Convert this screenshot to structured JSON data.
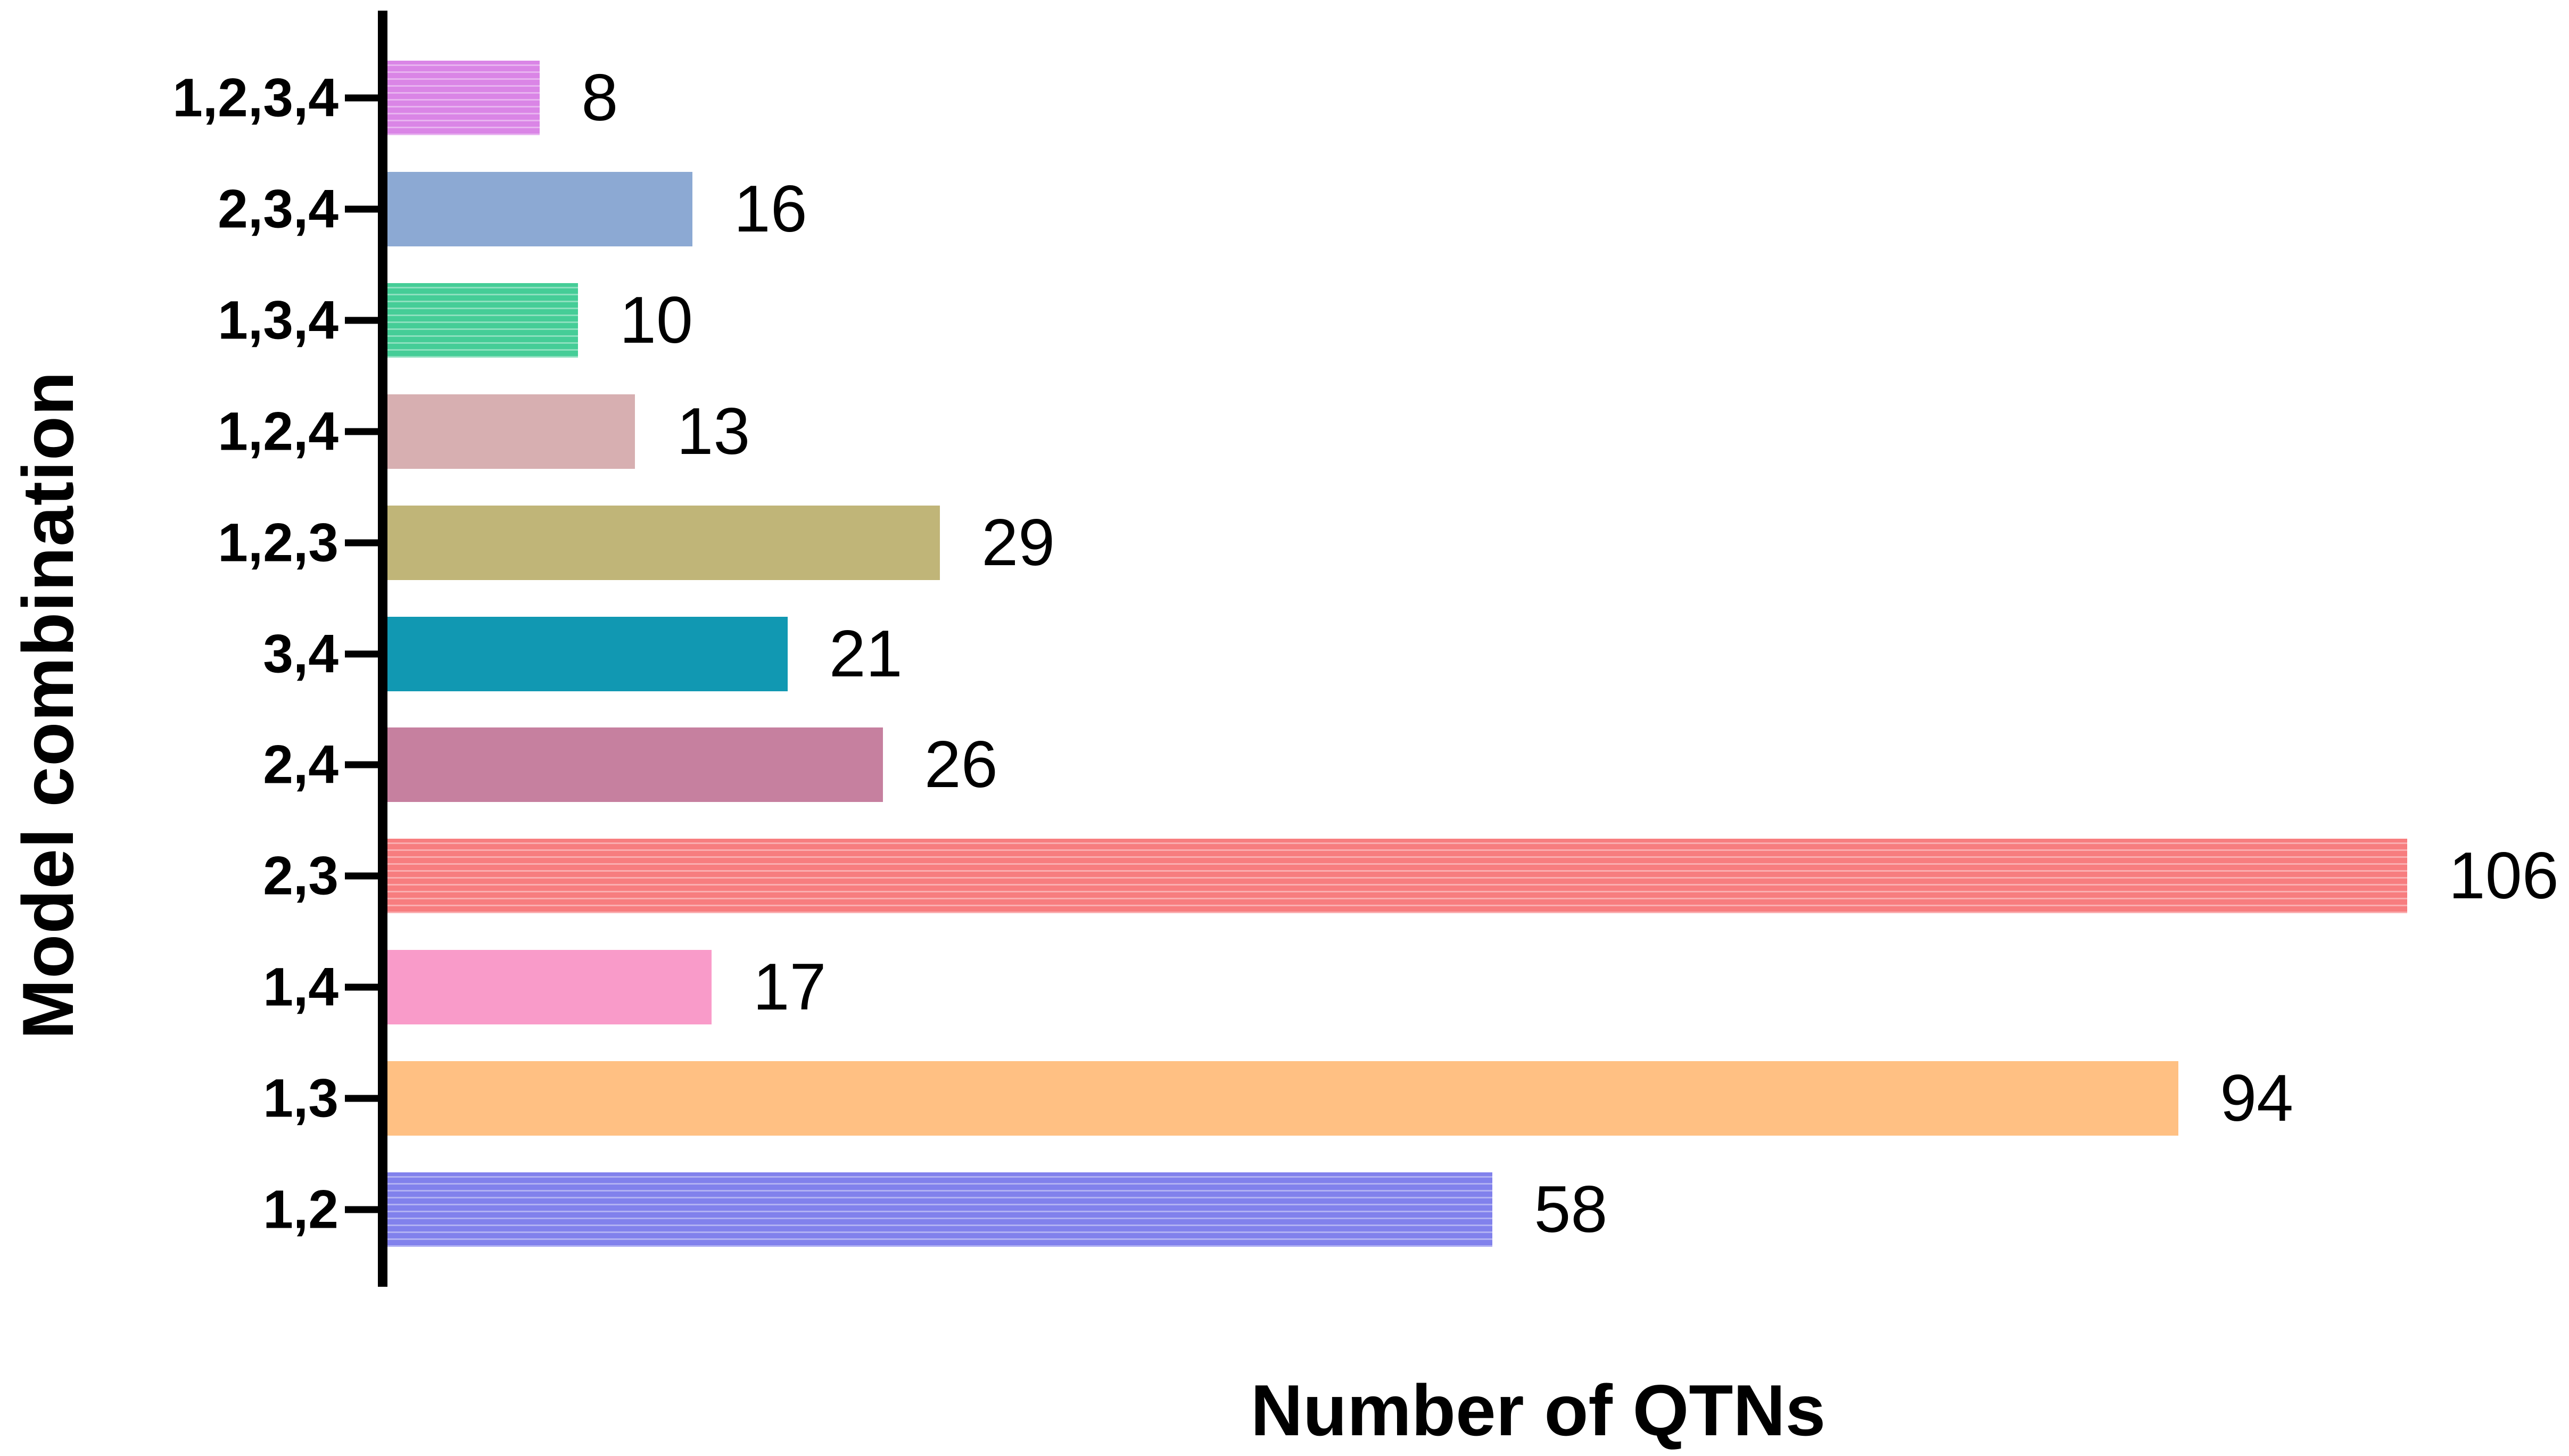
{
  "chart_data": {
    "type": "bar",
    "orientation": "horizontal",
    "title": "",
    "xlabel": "Number of QTNs",
    "ylabel": "Model combination",
    "categories": [
      "1,2,3,4",
      "2,3,4",
      "1,3,4",
      "1,2,4",
      "1,2,3",
      "3,4",
      "2,4",
      "2,3",
      "1,4",
      "1,3",
      "1,2"
    ],
    "values": [
      8,
      16,
      10,
      13,
      29,
      21,
      26,
      106,
      17,
      94,
      58
    ],
    "value_labels": [
      "8",
      "16",
      "10",
      "13",
      "29",
      "21",
      "26",
      "106",
      "17",
      "94",
      "58"
    ],
    "bar_colors": [
      "#da85e6",
      "#8ca9d3",
      "#45cd97",
      "#d7afb1",
      "#c0b578",
      "#1198b2",
      "#c6809f",
      "#f77d7f",
      "#f99bc9",
      "#ffc083",
      "#8181ec"
    ],
    "bar_textured": [
      true,
      false,
      true,
      false,
      false,
      false,
      false,
      true,
      false,
      false,
      true
    ],
    "xlim": [
      0,
      114
    ],
    "grid": false,
    "legend": null,
    "value_labels_shown": true,
    "axis_color": "#000000",
    "background_color": "#ffffff"
  }
}
